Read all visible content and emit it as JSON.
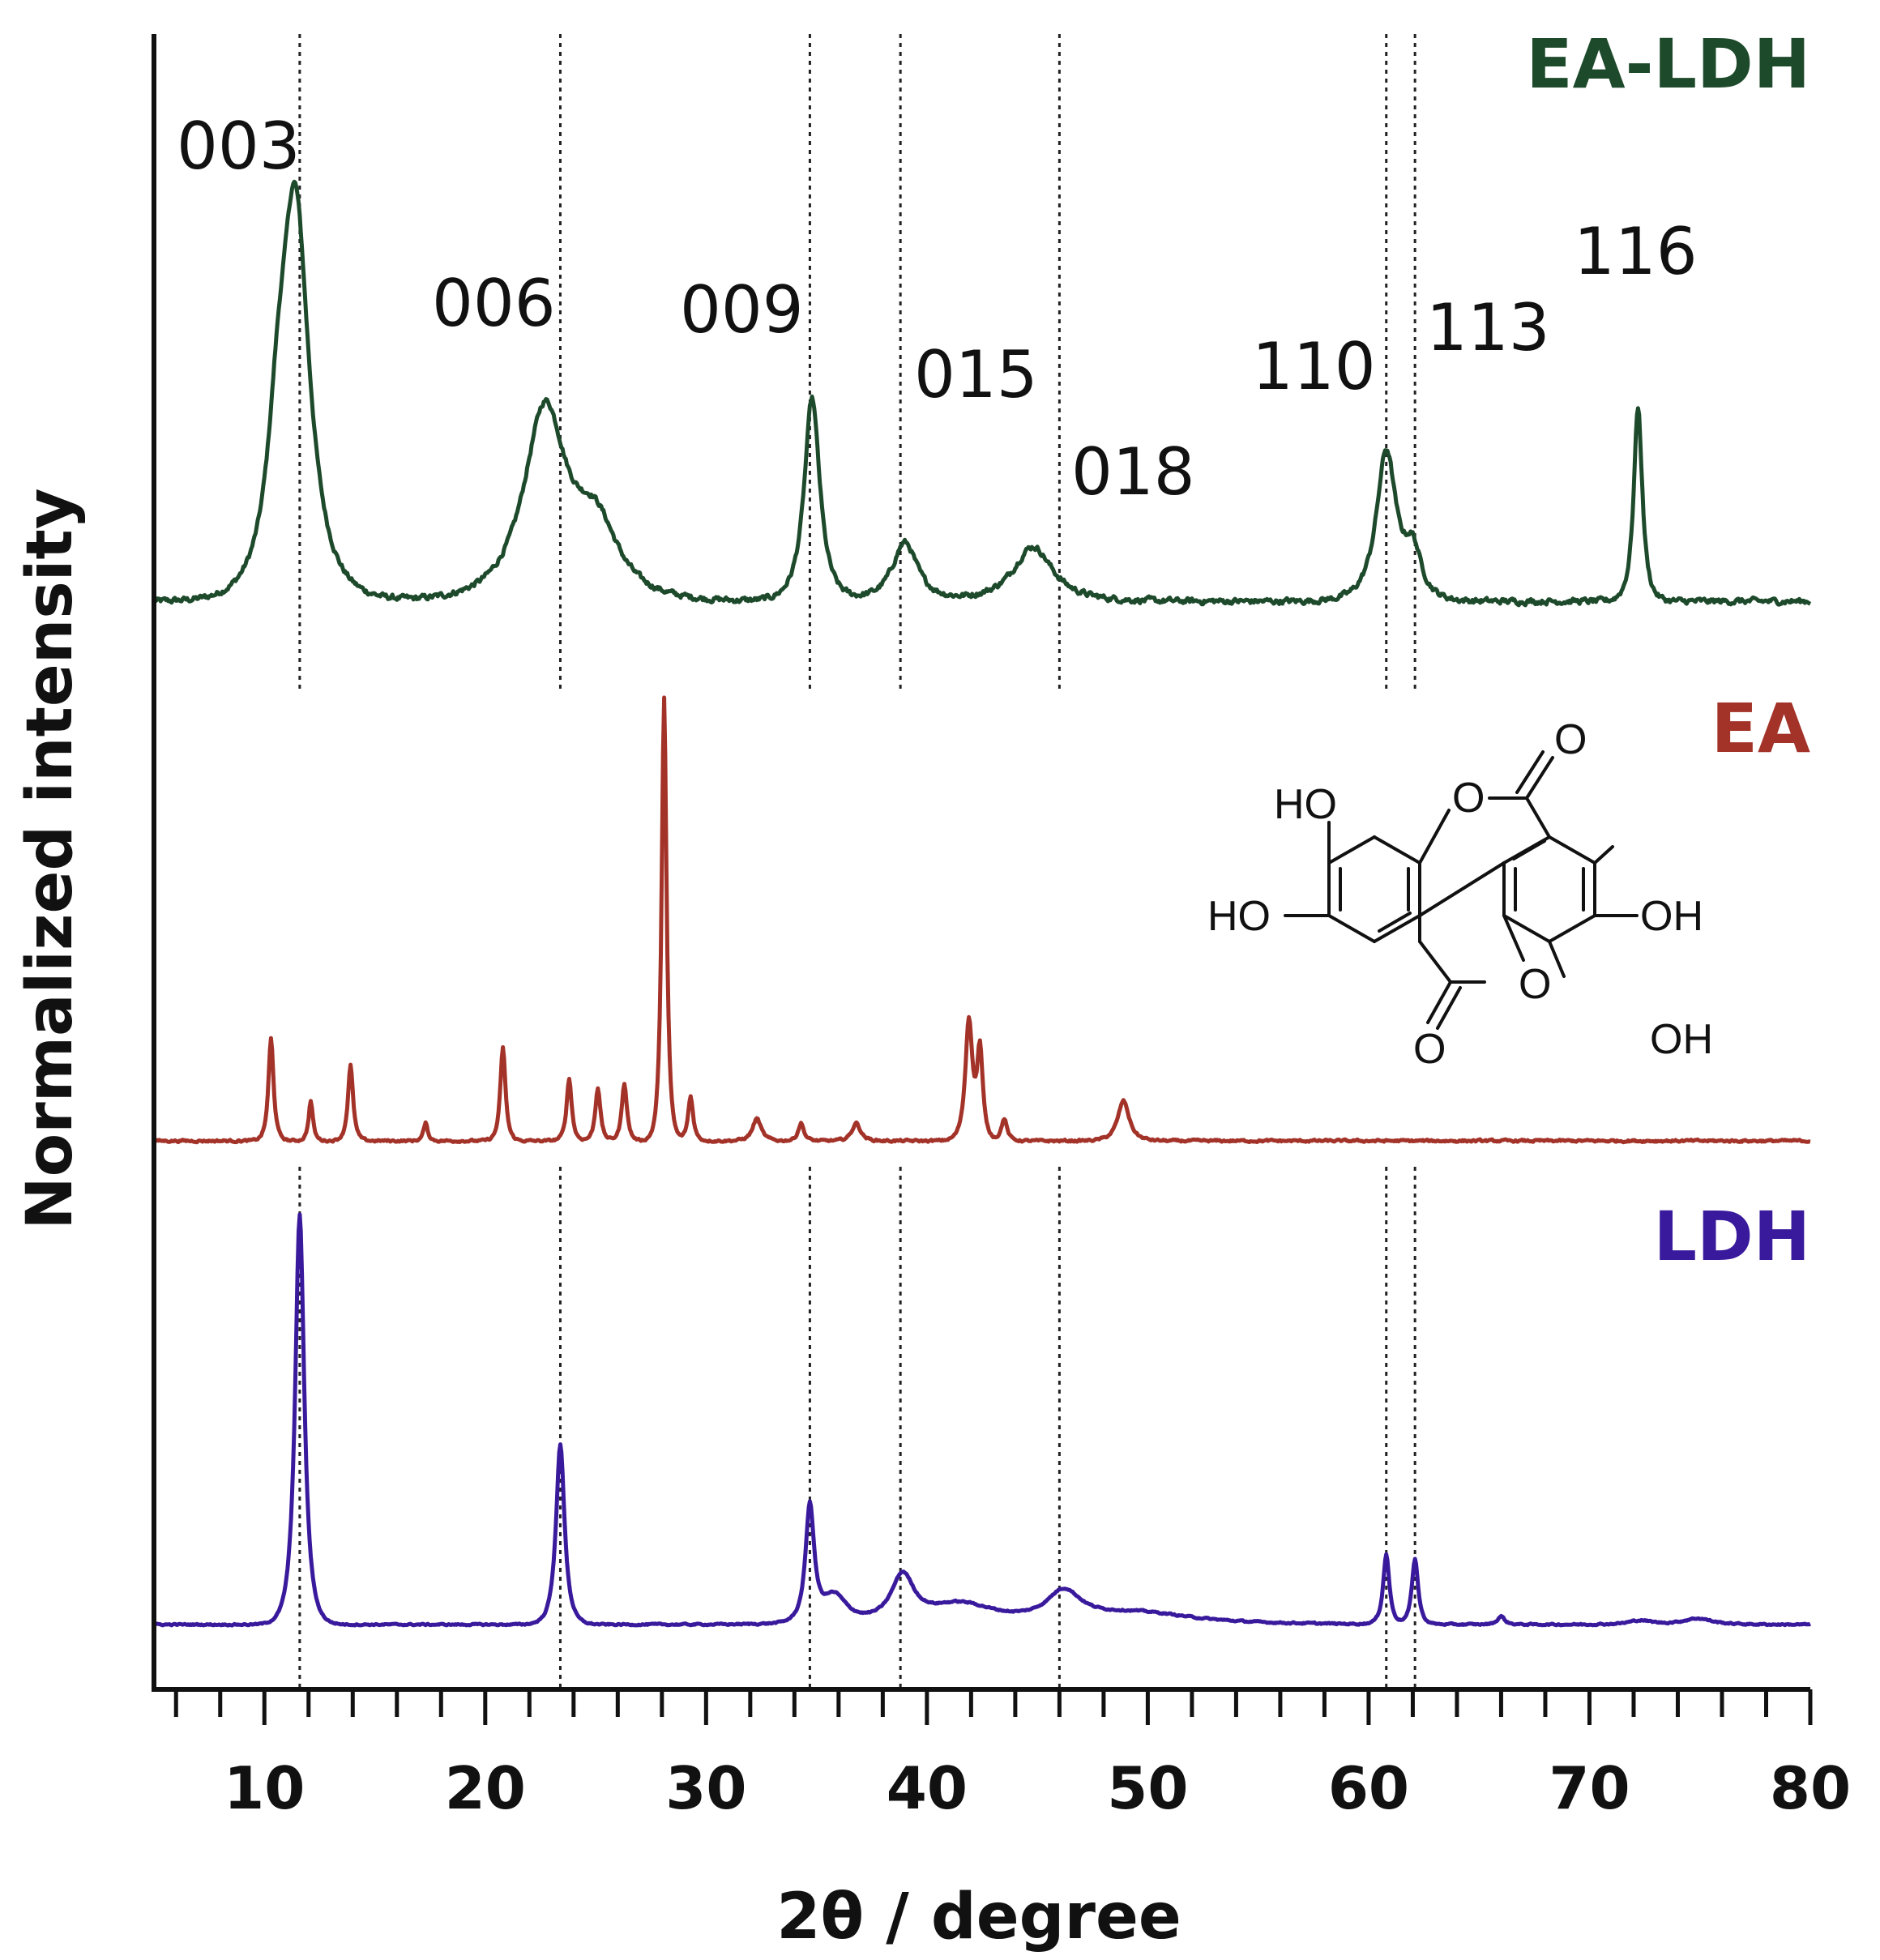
{
  "chart_data": {
    "type": "line",
    "xlabel": "2θ / degree",
    "ylabel": "Normalized intensity",
    "xlim": [
      5,
      80
    ],
    "xticks": [
      10,
      20,
      30,
      40,
      50,
      60,
      70,
      80
    ],
    "minor_tick_step": 2,
    "grid": false,
    "y_ticks_shown": false,
    "series": [
      {
        "name": "EA-LDH",
        "color": "#1e4a2c",
        "baseline": 0.0,
        "noise": 0.012,
        "peaks": [
          {
            "x": 11.4,
            "h": 1.0,
            "w": 1.0
          },
          {
            "x": 10.6,
            "h": 0.25,
            "w": 0.7
          },
          {
            "x": 22.7,
            "h": 0.48,
            "w": 1.5
          },
          {
            "x": 25.0,
            "h": 0.18,
            "w": 1.6
          },
          {
            "x": 34.8,
            "h": 0.52,
            "w": 0.55
          },
          {
            "x": 39.0,
            "h": 0.15,
            "w": 0.9
          },
          {
            "x": 44.8,
            "h": 0.14,
            "w": 1.4
          },
          {
            "x": 60.8,
            "h": 0.38,
            "w": 0.7
          },
          {
            "x": 62.0,
            "h": 0.12,
            "w": 0.6
          },
          {
            "x": 72.2,
            "h": 0.5,
            "w": 0.3
          }
        ]
      },
      {
        "name": "EA",
        "color": "#a33228",
        "baseline": 0.0,
        "noise": 0.004,
        "peaks": [
          {
            "x": 10.3,
            "h": 0.23,
            "w": 0.18
          },
          {
            "x": 12.1,
            "h": 0.09,
            "w": 0.15
          },
          {
            "x": 13.9,
            "h": 0.17,
            "w": 0.18
          },
          {
            "x": 17.3,
            "h": 0.04,
            "w": 0.15
          },
          {
            "x": 20.8,
            "h": 0.21,
            "w": 0.18
          },
          {
            "x": 23.8,
            "h": 0.14,
            "w": 0.18
          },
          {
            "x": 25.1,
            "h": 0.12,
            "w": 0.18
          },
          {
            "x": 26.3,
            "h": 0.13,
            "w": 0.18
          },
          {
            "x": 28.1,
            "h": 1.0,
            "w": 0.17
          },
          {
            "x": 29.3,
            "h": 0.1,
            "w": 0.18
          },
          {
            "x": 32.3,
            "h": 0.05,
            "w": 0.3
          },
          {
            "x": 34.3,
            "h": 0.04,
            "w": 0.2
          },
          {
            "x": 36.8,
            "h": 0.04,
            "w": 0.3
          },
          {
            "x": 41.9,
            "h": 0.27,
            "w": 0.25
          },
          {
            "x": 42.4,
            "h": 0.2,
            "w": 0.2
          },
          {
            "x": 43.5,
            "h": 0.05,
            "w": 0.2
          },
          {
            "x": 48.9,
            "h": 0.09,
            "w": 0.4
          }
        ]
      },
      {
        "name": "LDH",
        "color": "#3a1a9c",
        "baseline": 0.0,
        "noise": 0.003,
        "peaks": [
          {
            "x": 11.6,
            "h": 1.0,
            "w": 0.32
          },
          {
            "x": 23.4,
            "h": 0.44,
            "w": 0.3
          },
          {
            "x": 34.7,
            "h": 0.28,
            "w": 0.3
          },
          {
            "x": 35.8,
            "h": 0.07,
            "w": 0.9
          },
          {
            "x": 38.9,
            "h": 0.11,
            "w": 0.8
          },
          {
            "x": 41.5,
            "h": 0.05,
            "w": 2.5
          },
          {
            "x": 46.2,
            "h": 0.07,
            "w": 1.2
          },
          {
            "x": 49.5,
            "h": 0.03,
            "w": 4.0
          },
          {
            "x": 60.8,
            "h": 0.17,
            "w": 0.22
          },
          {
            "x": 62.1,
            "h": 0.16,
            "w": 0.22
          },
          {
            "x": 66.0,
            "h": 0.02,
            "w": 0.25
          },
          {
            "x": 72.3,
            "h": 0.01,
            "w": 0.8
          },
          {
            "x": 74.9,
            "h": 0.015,
            "w": 1.0
          }
        ]
      }
    ],
    "reference_lines": [
      11.6,
      23.4,
      34.7,
      38.8,
      46.0,
      60.8,
      62.1
    ],
    "reflections": [
      {
        "label": "003",
        "x": 11.6
      },
      {
        "label": "006",
        "x": 23.4
      },
      {
        "label": "009",
        "x": 34.7
      },
      {
        "label": "015",
        "x": 38.8
      },
      {
        "label": "018",
        "x": 46.0
      },
      {
        "label": "110",
        "x": 60.8
      },
      {
        "label": "113",
        "x": 62.1
      },
      {
        "label": "116",
        "x": 72.2
      }
    ]
  },
  "structure": {
    "atoms": {
      "ho_1": "HO",
      "ho_2": "HO",
      "oh_1": "OH",
      "oh_2": "OH",
      "o_carbonyl_top": "O",
      "o_carbonyl_bottom": "O",
      "o_ring_top": "O",
      "o_ring_bottom": "O"
    }
  }
}
